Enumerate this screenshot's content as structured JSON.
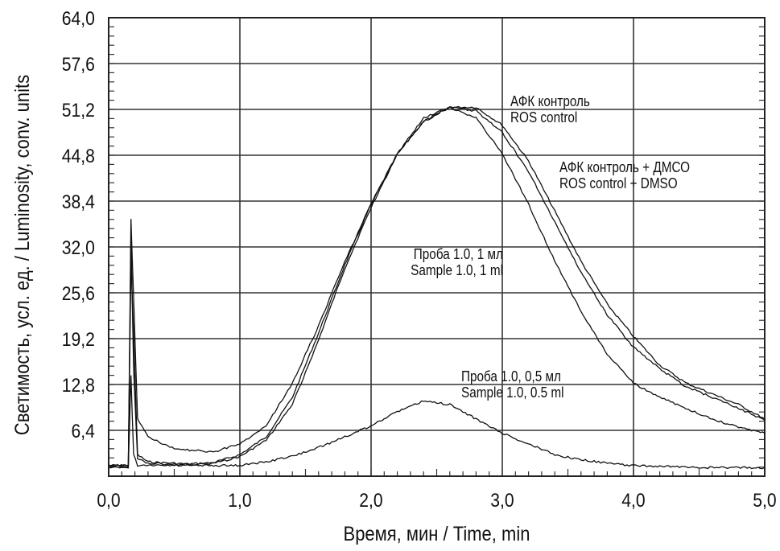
{
  "chart_data": {
    "type": "line",
    "title": "",
    "xlabel": "Время, мин / Time, min",
    "ylabel": "Светимость, усл. ед. / Luminosity, conv. units",
    "xlim": [
      0,
      5
    ],
    "ylim": [
      0,
      64
    ],
    "xticks": [
      "0,0",
      "1,0",
      "2,0",
      "3,0",
      "4,0",
      "5,0"
    ],
    "yticks": [
      "6,4",
      "12,8",
      "19,2",
      "25,6",
      "32,0",
      "38,4",
      "44,8",
      "51,2",
      "57,6",
      "64,0"
    ],
    "grid": true,
    "series": [
      {
        "name": "АФК контроль / ROS control",
        "label1": "АФК контроль",
        "label2": "ROS control",
        "x": [
          0,
          0.15,
          0.17,
          0.19,
          0.22,
          0.3,
          0.6,
          0.8,
          1.0,
          1.2,
          1.4,
          1.6,
          1.8,
          2.0,
          2.2,
          2.4,
          2.6,
          2.8,
          3.0,
          3.2,
          3.4,
          3.6,
          3.8,
          4.0,
          4.2,
          4.4,
          4.6,
          4.8,
          5.0
        ],
        "y": [
          1.5,
          1.5,
          30,
          20,
          3,
          2,
          1.7,
          1.9,
          3,
          5.5,
          11,
          20,
          29.5,
          38,
          45,
          49.5,
          51.5,
          51.5,
          49,
          44,
          37,
          30,
          24,
          19.5,
          15.5,
          13,
          11.5,
          10,
          8
        ]
      },
      {
        "name": "АФК контроль + ДМСО / ROS control + DMSO",
        "label1": "АФК контроль + ДМСО",
        "label2": "ROS control + DMSO",
        "x": [
          0,
          0.15,
          0.17,
          0.19,
          0.22,
          0.3,
          0.6,
          0.8,
          1.0,
          1.2,
          1.4,
          1.6,
          1.8,
          2.0,
          2.2,
          2.4,
          2.6,
          2.8,
          3.0,
          3.2,
          3.4,
          3.6,
          3.8,
          4.0,
          4.2,
          4.4,
          4.6,
          4.8,
          5.0
        ],
        "y": [
          1.2,
          1.2,
          34,
          15,
          2.5,
          1.8,
          1.6,
          1.8,
          2.7,
          5,
          10,
          19,
          29,
          37.5,
          45,
          49.5,
          51.5,
          51,
          48,
          42.5,
          35.5,
          28.5,
          22.5,
          18,
          15,
          12.5,
          11,
          9.5,
          7.8
        ]
      },
      {
        "name": "Проба 1.0, 1 мл / Sample 1.0, 1 ml",
        "label1": "Проба 1.0, 1 мл",
        "label2": "Sample 1.0, 1 ml",
        "x": [
          0,
          0.15,
          0.17,
          0.19,
          0.22,
          0.3,
          0.5,
          0.8,
          1.0,
          1.2,
          1.4,
          1.6,
          1.8,
          2.0,
          2.2,
          2.4,
          2.6,
          2.8,
          3.0,
          3.2,
          3.4,
          3.6,
          3.8,
          4.0,
          4.2,
          4.4,
          4.6,
          4.8,
          5.0
        ],
        "y": [
          1.5,
          1.5,
          36,
          25,
          8,
          5.5,
          3.8,
          3.4,
          4.5,
          7,
          13,
          21,
          30,
          38,
          45,
          50,
          51.5,
          50,
          45,
          38,
          30,
          23,
          17,
          13,
          11,
          9.5,
          8,
          6.8,
          6
        ]
      },
      {
        "name": "Проба 1.0, 0,5 мл / Sample 1.0, 0.5 ml",
        "label1": "Проба 1.0, 0,5 мл",
        "label2": "Sample 1.0, 0.5 ml",
        "x": [
          0,
          0.15,
          0.17,
          0.19,
          0.22,
          0.5,
          1.0,
          1.2,
          1.4,
          1.6,
          1.8,
          2.0,
          2.2,
          2.4,
          2.6,
          2.8,
          3.0,
          3.2,
          3.4,
          3.6,
          3.8,
          4.0,
          4.5,
          5.0
        ],
        "y": [
          1.5,
          1.2,
          14,
          3,
          1.5,
          1.5,
          1.5,
          2,
          2.8,
          4,
          5.5,
          7,
          9,
          10.5,
          10,
          8,
          6,
          4.5,
          3,
          2.3,
          1.8,
          1.5,
          1.2,
          1.2
        ]
      }
    ]
  }
}
